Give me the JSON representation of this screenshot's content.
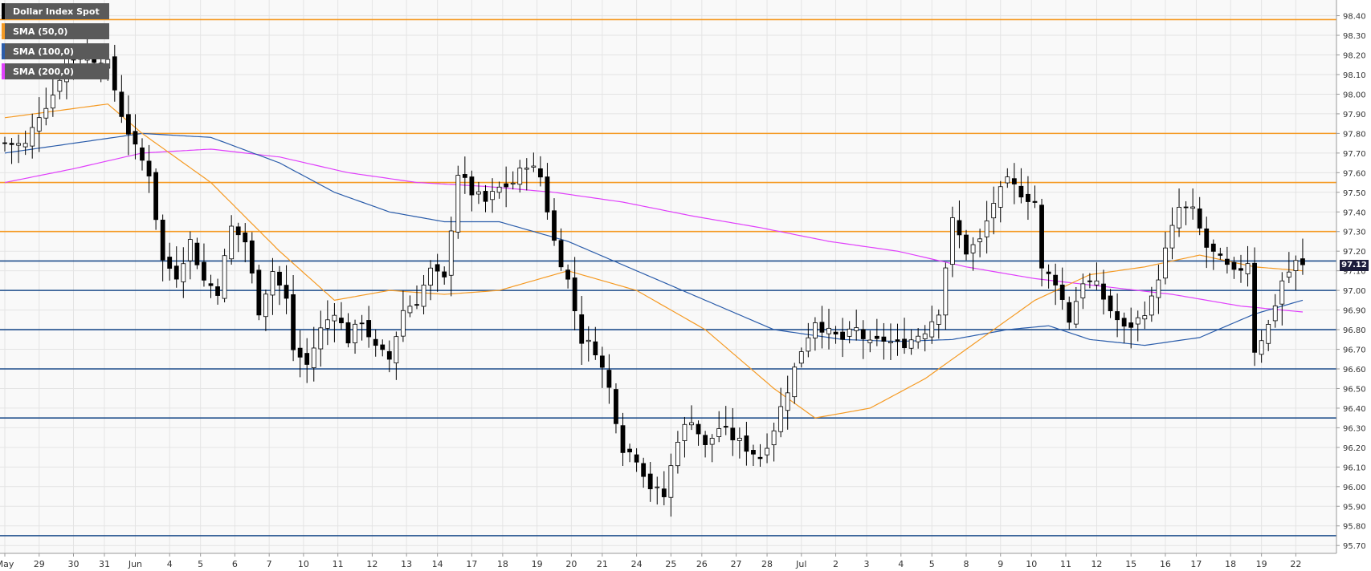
{
  "legend": [
    {
      "label": "Dollar Index Spot",
      "color": "#000000"
    },
    {
      "label": "SMA (50,0)",
      "color": "#f59a23"
    },
    {
      "label": "SMA (100,0)",
      "color": "#2a5caa"
    },
    {
      "label": "SMA (200,0)",
      "color": "#e040fb"
    }
  ],
  "last_price_label": "97.12",
  "chart_data": {
    "type": "candlestick",
    "title": "Dollar Index Spot",
    "xlabel": "",
    "ylabel": "",
    "ylim": [
      95.66,
      98.48
    ],
    "y_ticks": [
      "98.40",
      "98.30",
      "98.20",
      "98.10",
      "98.00",
      "97.90",
      "97.80",
      "97.70",
      "97.60",
      "97.50",
      "97.40",
      "97.30",
      "97.20",
      "97.10",
      "97.00",
      "96.90",
      "96.80",
      "96.70",
      "96.60",
      "96.50",
      "96.40",
      "96.30",
      "96.20",
      "96.10",
      "96.00",
      "95.90",
      "95.80",
      "95.70"
    ],
    "x_tick_labels": [
      {
        "label": "May",
        "idx": 0
      },
      {
        "label": "29",
        "idx": 5
      },
      {
        "label": "30",
        "idx": 10
      },
      {
        "label": "31",
        "idx": 14.5
      },
      {
        "label": "Jun",
        "idx": 19
      },
      {
        "label": "4",
        "idx": 24
      },
      {
        "label": "5",
        "idx": 28.5
      },
      {
        "label": "6",
        "idx": 33.5
      },
      {
        "label": "7",
        "idx": 38.5
      },
      {
        "label": "10",
        "idx": 43.5
      },
      {
        "label": "11",
        "idx": 48.5
      },
      {
        "label": "12",
        "idx": 53.5
      },
      {
        "label": "13",
        "idx": 58.5
      },
      {
        "label": "14",
        "idx": 63
      },
      {
        "label": "17",
        "idx": 68
      },
      {
        "label": "18",
        "idx": 72.5
      },
      {
        "label": "19",
        "idx": 77.5
      },
      {
        "label": "20",
        "idx": 82.5
      },
      {
        "label": "21",
        "idx": 87
      },
      {
        "label": "24",
        "idx": 92
      },
      {
        "label": "25",
        "idx": 97
      },
      {
        "label": "26",
        "idx": 101.5
      },
      {
        "label": "27",
        "idx": 106.5
      },
      {
        "label": "28",
        "idx": 111
      },
      {
        "label": "Jul",
        "idx": 116
      },
      {
        "label": "2",
        "idx": 121
      },
      {
        "label": "3",
        "idx": 125.5
      },
      {
        "label": "4",
        "idx": 130.5
      },
      {
        "label": "5",
        "idx": 135
      },
      {
        "label": "8",
        "idx": 140
      },
      {
        "label": "9",
        "idx": 145
      },
      {
        "label": "10",
        "idx": 149.5
      },
      {
        "label": "11",
        "idx": 154.5
      },
      {
        "label": "12",
        "idx": 159
      },
      {
        "label": "15",
        "idx": 164
      },
      {
        "label": "16",
        "idx": 169
      },
      {
        "label": "17",
        "idx": 173.5
      },
      {
        "label": "18",
        "idx": 178.5
      },
      {
        "label": "19",
        "idx": 183
      },
      {
        "label": "22",
        "idx": 188
      }
    ],
    "close_anchors": [
      [
        0,
        97.75
      ],
      [
        3,
        97.74
      ],
      [
        5,
        97.9
      ],
      [
        7,
        98.0
      ],
      [
        9,
        98.18
      ],
      [
        12,
        98.2
      ],
      [
        15,
        98.15
      ],
      [
        17,
        97.9
      ],
      [
        19,
        97.72
      ],
      [
        21,
        97.6
      ],
      [
        23,
        97.15
      ],
      [
        25,
        97.08
      ],
      [
        27,
        97.25
      ],
      [
        29,
        97.05
      ],
      [
        31,
        97.0
      ],
      [
        33,
        97.32
      ],
      [
        35,
        97.25
      ],
      [
        37,
        96.9
      ],
      [
        39,
        97.1
      ],
      [
        41,
        96.95
      ],
      [
        42,
        96.7
      ],
      [
        44,
        96.62
      ],
      [
        46,
        96.8
      ],
      [
        48,
        96.9
      ],
      [
        50,
        96.75
      ],
      [
        52,
        96.85
      ],
      [
        54,
        96.7
      ],
      [
        56,
        96.65
      ],
      [
        58,
        96.9
      ],
      [
        60,
        96.95
      ],
      [
        62,
        97.1
      ],
      [
        64,
        97.05
      ],
      [
        66,
        97.6
      ],
      [
        68,
        97.5
      ],
      [
        70,
        97.45
      ],
      [
        72,
        97.52
      ],
      [
        74,
        97.55
      ],
      [
        76,
        97.65
      ],
      [
        78,
        97.58
      ],
      [
        80,
        97.25
      ],
      [
        82,
        97.05
      ],
      [
        84,
        96.75
      ],
      [
        86,
        96.7
      ],
      [
        88,
        96.5
      ],
      [
        90,
        96.2
      ],
      [
        92,
        96.15
      ],
      [
        94,
        96.0
      ],
      [
        96,
        95.95
      ],
      [
        98,
        96.25
      ],
      [
        100,
        96.35
      ],
      [
        102,
        96.2
      ],
      [
        104,
        96.3
      ],
      [
        106,
        96.25
      ],
      [
        108,
        96.2
      ],
      [
        110,
        96.15
      ],
      [
        112,
        96.3
      ],
      [
        114,
        96.5
      ],
      [
        116,
        96.7
      ],
      [
        118,
        96.85
      ],
      [
        120,
        96.78
      ],
      [
        122,
        96.75
      ],
      [
        124,
        96.8
      ],
      [
        126,
        96.72
      ],
      [
        128,
        96.75
      ],
      [
        130,
        96.72
      ],
      [
        132,
        96.75
      ],
      [
        134,
        96.8
      ],
      [
        136,
        96.9
      ],
      [
        138,
        97.35
      ],
      [
        140,
        97.2
      ],
      [
        142,
        97.25
      ],
      [
        144,
        97.45
      ],
      [
        146,
        97.55
      ],
      [
        148,
        97.5
      ],
      [
        150,
        97.45
      ],
      [
        151,
        97.1
      ],
      [
        153,
        97.05
      ],
      [
        155,
        96.85
      ],
      [
        157,
        97.05
      ],
      [
        159,
        97.02
      ],
      [
        161,
        96.9
      ],
      [
        163,
        96.8
      ],
      [
        165,
        96.85
      ],
      [
        167,
        96.95
      ],
      [
        169,
        97.2
      ],
      [
        171,
        97.42
      ],
      [
        173,
        97.4
      ],
      [
        175,
        97.22
      ],
      [
        177,
        97.15
      ],
      [
        179,
        97.08
      ],
      [
        181,
        97.15
      ],
      [
        182,
        96.7
      ],
      [
        184,
        96.82
      ],
      [
        186,
        97.05
      ],
      [
        188,
        97.14
      ],
      [
        189,
        97.12
      ]
    ],
    "levels": [
      {
        "value": 98.38,
        "color": "#f59a23"
      },
      {
        "value": 97.8,
        "color": "#f59a23"
      },
      {
        "value": 97.55,
        "color": "#f59a23"
      },
      {
        "value": 97.3,
        "color": "#f59a23"
      },
      {
        "value": 97.15,
        "color": "#1f4e8c"
      },
      {
        "value": 97.0,
        "color": "#1f4e8c"
      },
      {
        "value": 96.8,
        "color": "#1f4e8c"
      },
      {
        "value": 96.6,
        "color": "#1f4e8c"
      },
      {
        "value": 96.35,
        "color": "#1f4e8c"
      },
      {
        "value": 95.75,
        "color": "#1f4e8c"
      }
    ],
    "sma50": [
      [
        0,
        97.88
      ],
      [
        15,
        97.95
      ],
      [
        20,
        97.8
      ],
      [
        30,
        97.55
      ],
      [
        40,
        97.2
      ],
      [
        48,
        96.95
      ],
      [
        56,
        97.0
      ],
      [
        64,
        96.98
      ],
      [
        72,
        97.0
      ],
      [
        82,
        97.1
      ],
      [
        92,
        97.0
      ],
      [
        102,
        96.8
      ],
      [
        112,
        96.5
      ],
      [
        118,
        96.35
      ],
      [
        126,
        96.4
      ],
      [
        134,
        96.55
      ],
      [
        142,
        96.75
      ],
      [
        150,
        96.95
      ],
      [
        158,
        97.08
      ],
      [
        166,
        97.12
      ],
      [
        174,
        97.18
      ],
      [
        182,
        97.12
      ],
      [
        189,
        97.1
      ]
    ],
    "sma100": [
      [
        0,
        97.7
      ],
      [
        10,
        97.75
      ],
      [
        20,
        97.8
      ],
      [
        30,
        97.78
      ],
      [
        40,
        97.65
      ],
      [
        48,
        97.5
      ],
      [
        56,
        97.4
      ],
      [
        64,
        97.35
      ],
      [
        72,
        97.35
      ],
      [
        82,
        97.25
      ],
      [
        92,
        97.1
      ],
      [
        102,
        96.95
      ],
      [
        112,
        96.8
      ],
      [
        122,
        96.75
      ],
      [
        130,
        96.74
      ],
      [
        138,
        96.75
      ],
      [
        146,
        96.8
      ],
      [
        152,
        96.82
      ],
      [
        158,
        96.75
      ],
      [
        166,
        96.72
      ],
      [
        174,
        96.76
      ],
      [
        182,
        96.88
      ],
      [
        189,
        96.95
      ]
    ],
    "sma200": [
      [
        0,
        97.55
      ],
      [
        10,
        97.62
      ],
      [
        20,
        97.7
      ],
      [
        30,
        97.72
      ],
      [
        40,
        97.68
      ],
      [
        50,
        97.6
      ],
      [
        60,
        97.55
      ],
      [
        70,
        97.53
      ],
      [
        80,
        97.5
      ],
      [
        90,
        97.45
      ],
      [
        100,
        97.38
      ],
      [
        110,
        97.32
      ],
      [
        120,
        97.25
      ],
      [
        130,
        97.2
      ],
      [
        140,
        97.12
      ],
      [
        150,
        97.06
      ],
      [
        160,
        97.02
      ],
      [
        170,
        96.98
      ],
      [
        180,
        96.92
      ],
      [
        189,
        96.89
      ]
    ]
  }
}
